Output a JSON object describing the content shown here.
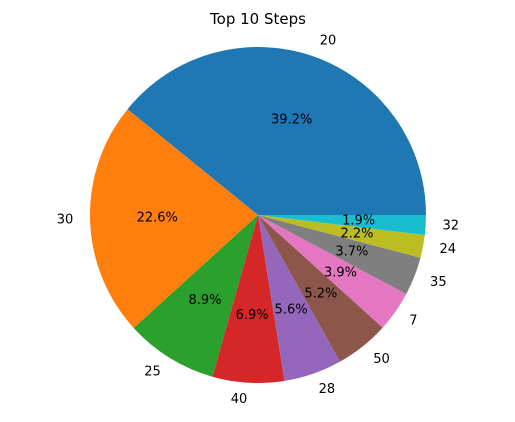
{
  "chart_data": {
    "type": "pie",
    "title": "Top 10 Steps",
    "categories": [
      "20",
      "30",
      "25",
      "40",
      "28",
      "50",
      "7",
      "35",
      "24",
      "32"
    ],
    "values": [
      39.2,
      22.6,
      8.9,
      6.9,
      5.6,
      5.2,
      3.9,
      3.7,
      2.2,
      1.9
    ],
    "percent_labels": [
      "39.2%",
      "22.6%",
      "8.9%",
      "6.9%",
      "5.6%",
      "5.2%",
      "3.9%",
      "3.7%",
      "2.2%",
      "1.9%"
    ],
    "colors": [
      "#1f77b4",
      "#ff7f0e",
      "#2ca02c",
      "#d62728",
      "#9467bd",
      "#8c564b",
      "#e377c2",
      "#7f7f7f",
      "#bcbd22",
      "#17becf"
    ],
    "start_angle_deg": 0,
    "direction": "counterclockwise",
    "legend": "none"
  }
}
